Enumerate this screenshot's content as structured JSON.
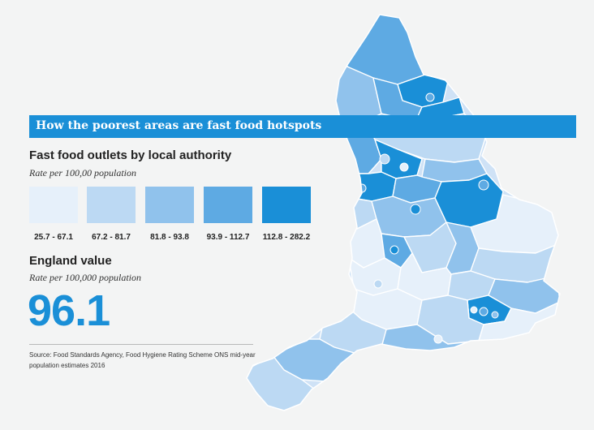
{
  "banner": {
    "title": "How the poorest areas are fast food hotspots"
  },
  "legend": {
    "title": "Fast food outlets by local authority",
    "subtitle": "Rate per 100,00 population",
    "bins": [
      {
        "label": "25.7 - 67.1",
        "color": "#e6f0fa"
      },
      {
        "label": "67.2 - 81.7",
        "color": "#bcd9f3"
      },
      {
        "label": "81.8 - 93.8",
        "color": "#90c2ec"
      },
      {
        "label": "93.9 - 112.7",
        "color": "#5eaae3"
      },
      {
        "label": "112.8 - 282.2",
        "color": "#1a8fd7"
      }
    ]
  },
  "england": {
    "title": "England value",
    "subtitle": "Rate per 100,000 population",
    "value": "96.1",
    "value_color": "#1a8fd7"
  },
  "source": {
    "text": "Source: Food Standards Agency, Food Hygiene Rating Scheme ONS mid-year population estimates 2016"
  },
  "map": {
    "border_color": "#ffffff"
  }
}
